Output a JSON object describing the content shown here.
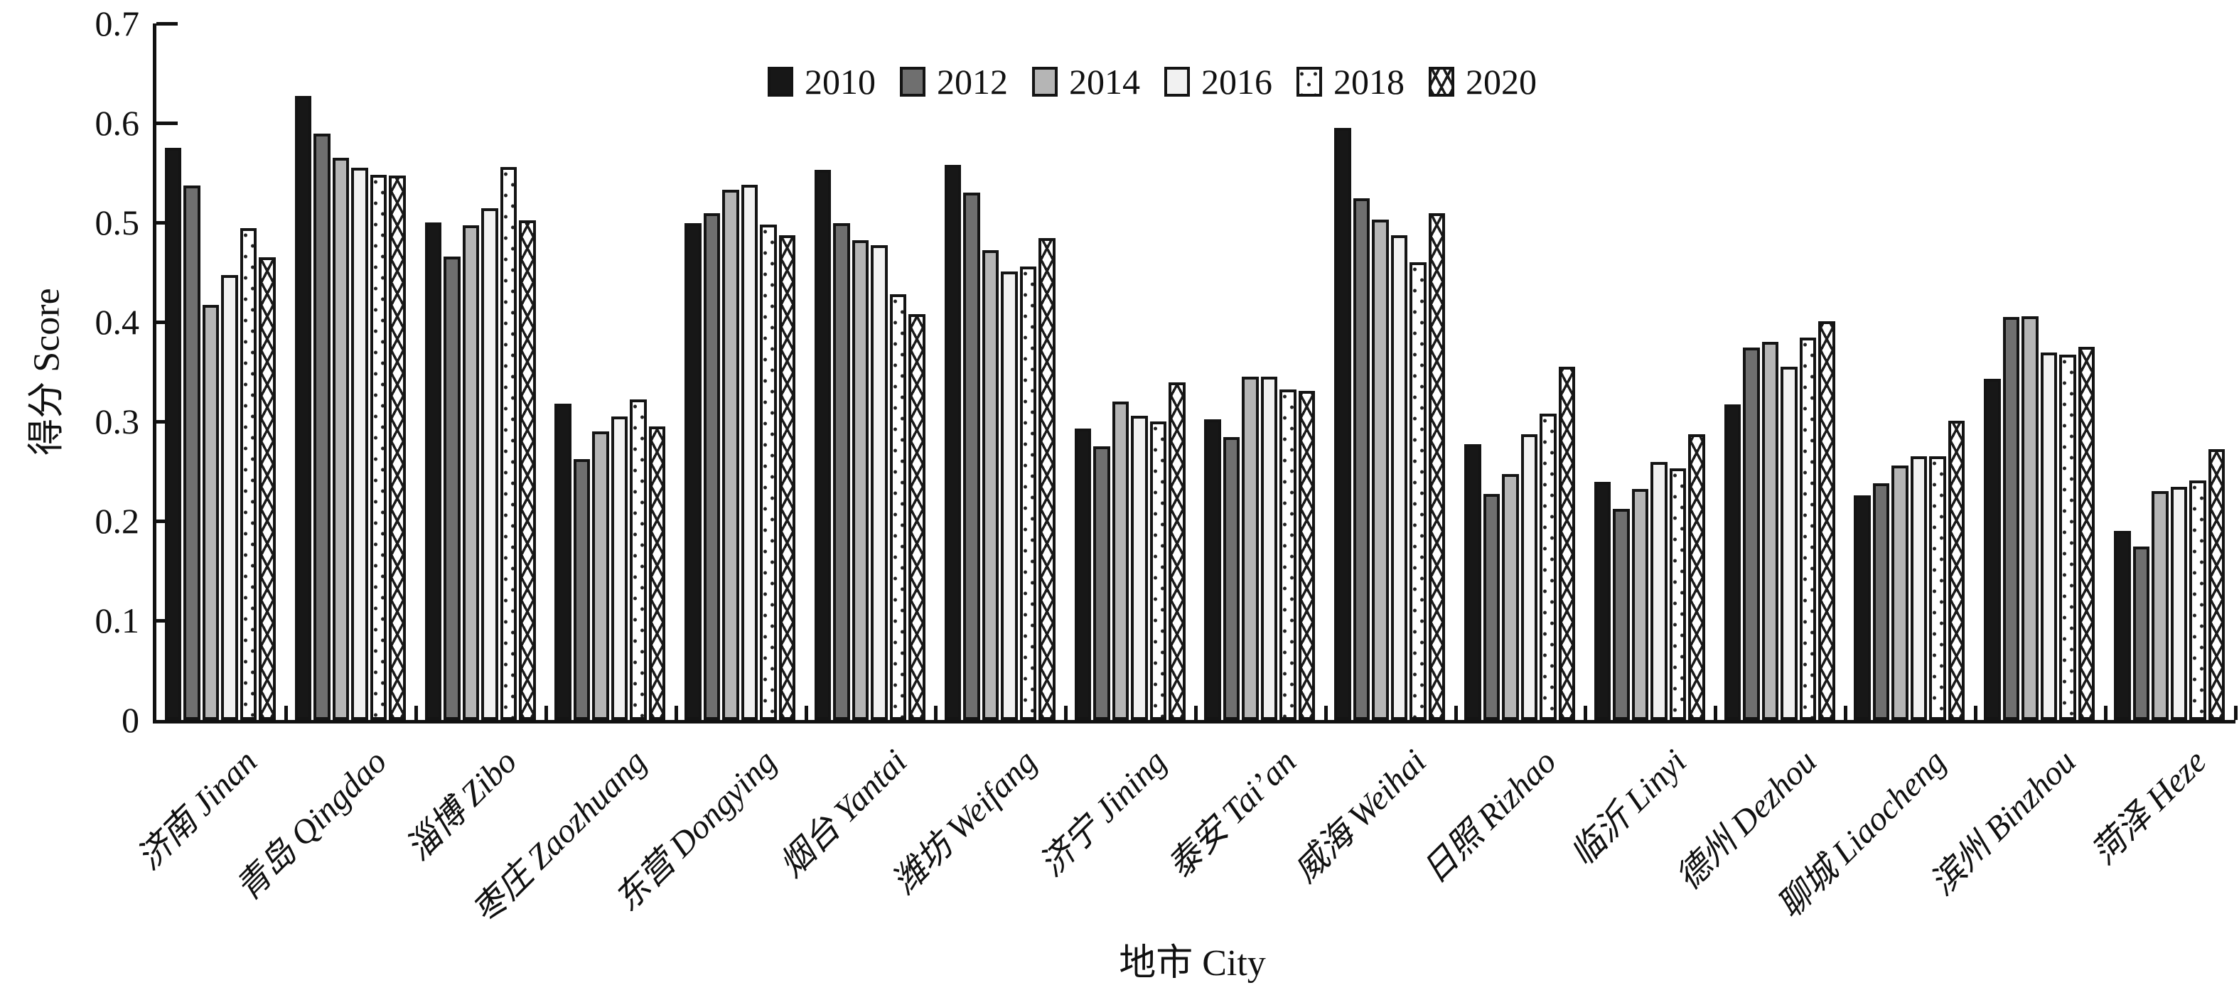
{
  "chart_data": {
    "type": "bar",
    "title": "",
    "ylabel": "得分 Score",
    "xlabel": "地市 City",
    "ylim": [
      0,
      0.7
    ],
    "yticks": [
      0,
      0.1,
      0.2,
      0.3,
      0.4,
      0.5,
      0.6,
      0.7
    ],
    "ytick_labels": [
      "0",
      "0.1",
      "0.2",
      "0.3",
      "0.4",
      "0.5",
      "0.6",
      "0.7"
    ],
    "grid": false,
    "legend_position": "top-center",
    "bar_outline_color": "#141414",
    "categories": [
      "济南 Jinan",
      "青岛 Qingdao",
      "淄博 Zibo",
      "枣庄 Zaozhuang",
      "东营 Dongying",
      "烟台 Yantai",
      "潍坊 Weifang",
      "济宁 Jining",
      "泰安 Tai’an",
      "威海 Weihai",
      "日照 Rizhao",
      "临沂 Linyi",
      "德州 Dezhou",
      "聊城 Liaocheng",
      "滨州 Binzhou",
      "菏泽 Heze"
    ],
    "series": [
      {
        "name": "2010",
        "pattern": "solid-dark",
        "color": "#171717",
        "values": [
          0.575,
          0.627,
          0.5,
          0.318,
          0.499,
          0.553,
          0.558,
          0.293,
          0.302,
          0.595,
          0.277,
          0.239,
          0.317,
          0.226,
          0.343,
          0.19
        ]
      },
      {
        "name": "2012",
        "pattern": "dark-gray",
        "color": "#6f6f6f",
        "values": [
          0.537,
          0.589,
          0.466,
          0.262,
          0.509,
          0.499,
          0.53,
          0.275,
          0.284,
          0.524,
          0.227,
          0.212,
          0.374,
          0.238,
          0.405,
          0.174
        ]
      },
      {
        "name": "2014",
        "pattern": "light-gray",
        "color": "#b5b5b5",
        "values": [
          0.417,
          0.565,
          0.497,
          0.29,
          0.533,
          0.482,
          0.472,
          0.32,
          0.345,
          0.503,
          0.247,
          0.232,
          0.38,
          0.256,
          0.406,
          0.23
        ]
      },
      {
        "name": "2016",
        "pattern": "near-white",
        "color": "#f1f1f1",
        "values": [
          0.447,
          0.555,
          0.514,
          0.305,
          0.538,
          0.477,
          0.451,
          0.306,
          0.345,
          0.487,
          0.287,
          0.259,
          0.355,
          0.265,
          0.369,
          0.234
        ]
      },
      {
        "name": "2018",
        "pattern": "dotted-white",
        "color": "#ffffff",
        "values": [
          0.494,
          0.548,
          0.556,
          0.322,
          0.498,
          0.428,
          0.456,
          0.3,
          0.332,
          0.46,
          0.308,
          0.253,
          0.384,
          0.265,
          0.367,
          0.241
        ]
      },
      {
        "name": "2020",
        "pattern": "crosshatch-white",
        "color": "#ffffff",
        "values": [
          0.465,
          0.547,
          0.502,
          0.295,
          0.487,
          0.408,
          0.484,
          0.339,
          0.331,
          0.509,
          0.355,
          0.287,
          0.401,
          0.301,
          0.375,
          0.272
        ]
      }
    ]
  }
}
